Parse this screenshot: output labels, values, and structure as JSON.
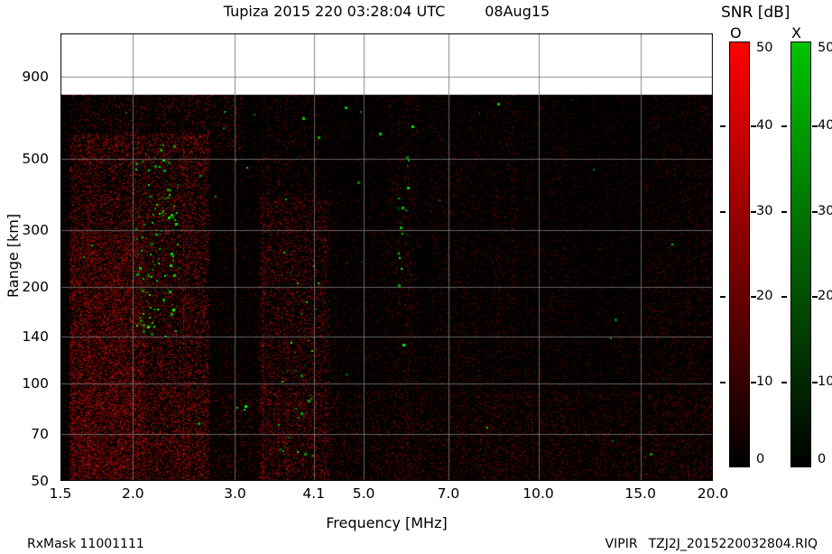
{
  "header": {
    "title": "Tupiza 2015 220 03:28:04 UTC",
    "date": "08Aug15",
    "colorbar_title": "SNR [dB]"
  },
  "footer": {
    "rxmask": "RxMask 11001111",
    "instrument": "VIPIR",
    "filename": "TZJ2J_2015220032804.RIQ"
  },
  "chart_data": {
    "type": "heatmap",
    "title": "Tupiza 2015 220 03:28:04 UTC",
    "date_label": "08Aug15",
    "xlabel": "Frequency [MHz]",
    "ylabel": "Range [km]",
    "x_scale": "log",
    "y_scale": "log",
    "xlim": [
      1.5,
      20
    ],
    "ylim": [
      50,
      1224
    ],
    "max_sampled_range_km": 790,
    "grid": true,
    "background_color": "#000000",
    "x_ticks": [
      {
        "value": 1.5,
        "label": "1.5"
      },
      {
        "value": 2.0,
        "label": "2.0"
      },
      {
        "value": 3.0,
        "label": "3.0"
      },
      {
        "value": 4.1,
        "label": "4.1"
      },
      {
        "value": 5.0,
        "label": "5.0"
      },
      {
        "value": 7.0,
        "label": "7.0"
      },
      {
        "value": 10.0,
        "label": "10.0"
      },
      {
        "value": 15.0,
        "label": "15.0"
      },
      {
        "value": 20.0,
        "label": "20.0"
      }
    ],
    "y_ticks": [
      {
        "value": 900,
        "label": "900"
      },
      {
        "value": 500,
        "label": "500"
      },
      {
        "value": 300,
        "label": "300"
      },
      {
        "value": 200,
        "label": "200"
      },
      {
        "value": 140,
        "label": "140"
      },
      {
        "value": 100,
        "label": "100"
      },
      {
        "value": 70,
        "label": "70"
      },
      {
        "value": 50,
        "label": "50"
      }
    ],
    "colorbar": {
      "title": "SNR [dB]",
      "min": 0,
      "max": 50,
      "ticks": [
        {
          "value": 50,
          "label": "50"
        },
        {
          "value": 40,
          "label": "40"
        },
        {
          "value": 30,
          "label": "30"
        },
        {
          "value": 20,
          "label": "20"
        },
        {
          "value": 10,
          "label": "10"
        },
        {
          "value": 0,
          "label": "0"
        }
      ],
      "bars": [
        {
          "label": "O",
          "color": "#ff0000"
        },
        {
          "label": "X",
          "color": "#00c400"
        }
      ]
    },
    "notes": "Ionogram dominated by O-mode (red) RFI/noise speckle on black background; white band above ~790 km is unsampled. Weak X-mode echoes (green) cluster near 2.0-2.4 MHz between ~150-550 km, near 3.6-4.1 MHz below ~300 km, and a thin streak near 5.8 MHz.",
    "noise": {
      "seed": 7,
      "base_red_density": 0.045,
      "bands": [
        {
          "f0": 1.55,
          "f1": 2.7,
          "r0": 50,
          "r1": 600,
          "density": 0.32,
          "intensity": 0.95
        },
        {
          "f0": 1.55,
          "f1": 2.1,
          "r0": 50,
          "r1": 300,
          "density": 0.22,
          "intensity": 0.8
        },
        {
          "f0": 1.55,
          "f1": 3.1,
          "r0": 520,
          "r1": 790,
          "density": 0.12,
          "intensity": 0.75
        },
        {
          "f0": 3.3,
          "f1": 4.35,
          "r0": 50,
          "r1": 380,
          "density": 0.22,
          "intensity": 0.85
        },
        {
          "f0": 3.4,
          "f1": 4.2,
          "r0": 380,
          "r1": 790,
          "density": 0.08,
          "intensity": 0.6
        },
        {
          "f0": 5.5,
          "f1": 6.2,
          "r0": 50,
          "r1": 790,
          "density": 0.07,
          "intensity": 0.6
        },
        {
          "f0": 6.5,
          "f1": 7.8,
          "r0": 50,
          "r1": 790,
          "density": 0.05,
          "intensity": 0.55
        },
        {
          "f0": 8.3,
          "f1": 9.2,
          "r0": 50,
          "r1": 790,
          "density": 0.06,
          "intensity": 0.6
        },
        {
          "f0": 10.2,
          "f1": 11.2,
          "r0": 50,
          "r1": 790,
          "density": 0.04,
          "intensity": 0.5
        },
        {
          "f0": 15.3,
          "f1": 19.9,
          "r0": 50,
          "r1": 790,
          "density": 0.05,
          "intensity": 0.55
        },
        {
          "f0": 1.55,
          "f1": 20.0,
          "r0": 50,
          "r1": 95,
          "density": 0.08,
          "intensity": 0.6
        }
      ],
      "green_clusters": [
        {
          "f0": 2.02,
          "f1": 2.4,
          "r0": 140,
          "r1": 560,
          "count": 140
        },
        {
          "f0": 3.55,
          "f1": 4.15,
          "r0": 55,
          "r1": 300,
          "count": 40
        },
        {
          "f0": 5.72,
          "f1": 5.98,
          "r0": 200,
          "r1": 560,
          "count": 22
        },
        {
          "f0": 1.6,
          "f1": 19.8,
          "r0": 55,
          "r1": 780,
          "count": 55
        }
      ]
    }
  }
}
